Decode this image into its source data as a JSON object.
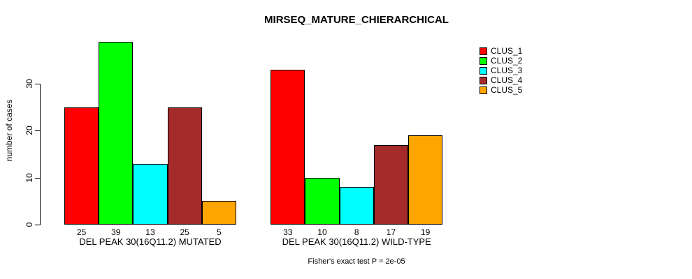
{
  "chart_data": {
    "type": "bar",
    "title": "MIRSEQ_MATURE_CHIERARCHICAL",
    "ylabel": "number of cases",
    "xlabel": "",
    "yticks": [
      0,
      10,
      20,
      30
    ],
    "ylim": [
      0,
      40
    ],
    "grid": false,
    "legend_position": "right-outside",
    "series_names": [
      "CLUS_1",
      "CLUS_2",
      "CLUS_3",
      "CLUS_4",
      "CLUS_5"
    ],
    "series_colors": [
      "#ff0000",
      "#00ff00",
      "#00ffff",
      "#a52a2a",
      "#ffa500"
    ],
    "groups": [
      {
        "label": "DEL PEAK 30(16Q11.2) MUTATED",
        "values": [
          25,
          39,
          13,
          25,
          5
        ]
      },
      {
        "label": "DEL PEAK 30(16Q11.2) WILD-TYPE",
        "values": [
          33,
          10,
          8,
          17,
          19
        ]
      }
    ],
    "bar_value_labels_shown": true,
    "annotation": "Fisher's exact test P = 2e-05"
  }
}
